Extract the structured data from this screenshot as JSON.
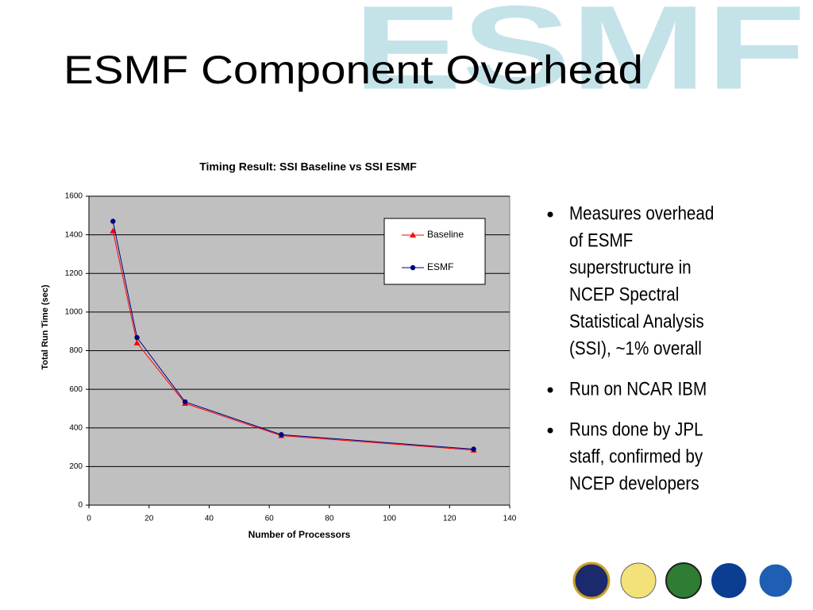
{
  "slide_title": "ESMF Component Overhead",
  "logo": "ESMF",
  "bullets": [
    {
      "lines": [
        "Measures overhead",
        "of ESMF",
        "superstructure in",
        "NCEP Spectral",
        "Statistical Analysis",
        "(SSI), ~1% overall"
      ]
    },
    {
      "lines": [
        "Run on NCAR IBM"
      ]
    },
    {
      "lines": [
        "Runs done by JPL",
        "staff,  confirmed by",
        "NCEP developers"
      ]
    }
  ],
  "chart_data": {
    "type": "line",
    "title": "Timing Result: SSI Baseline vs SSI ESMF",
    "xlabel": "Number of Processors",
    "ylabel": "Total Run Time (sec)",
    "x": [
      8,
      16,
      32,
      64,
      128
    ],
    "series": [
      {
        "name": "Baseline",
        "color": "#ff0000",
        "marker": "triangle",
        "values": [
          1420,
          840,
          527,
          360,
          285
        ]
      },
      {
        "name": "ESMF",
        "color": "#000080",
        "marker": "circle",
        "values": [
          1470,
          868,
          535,
          365,
          290
        ]
      }
    ],
    "xlim": [
      0,
      140
    ],
    "xticks": [
      0,
      20,
      40,
      60,
      80,
      100,
      120,
      140
    ],
    "ylim": [
      0,
      1600
    ],
    "yticks": [
      0,
      200,
      400,
      600,
      800,
      1000,
      1200,
      1400,
      1600
    ],
    "grid": true,
    "legend": "upper right",
    "plot_background": "#c0c0c0"
  }
}
